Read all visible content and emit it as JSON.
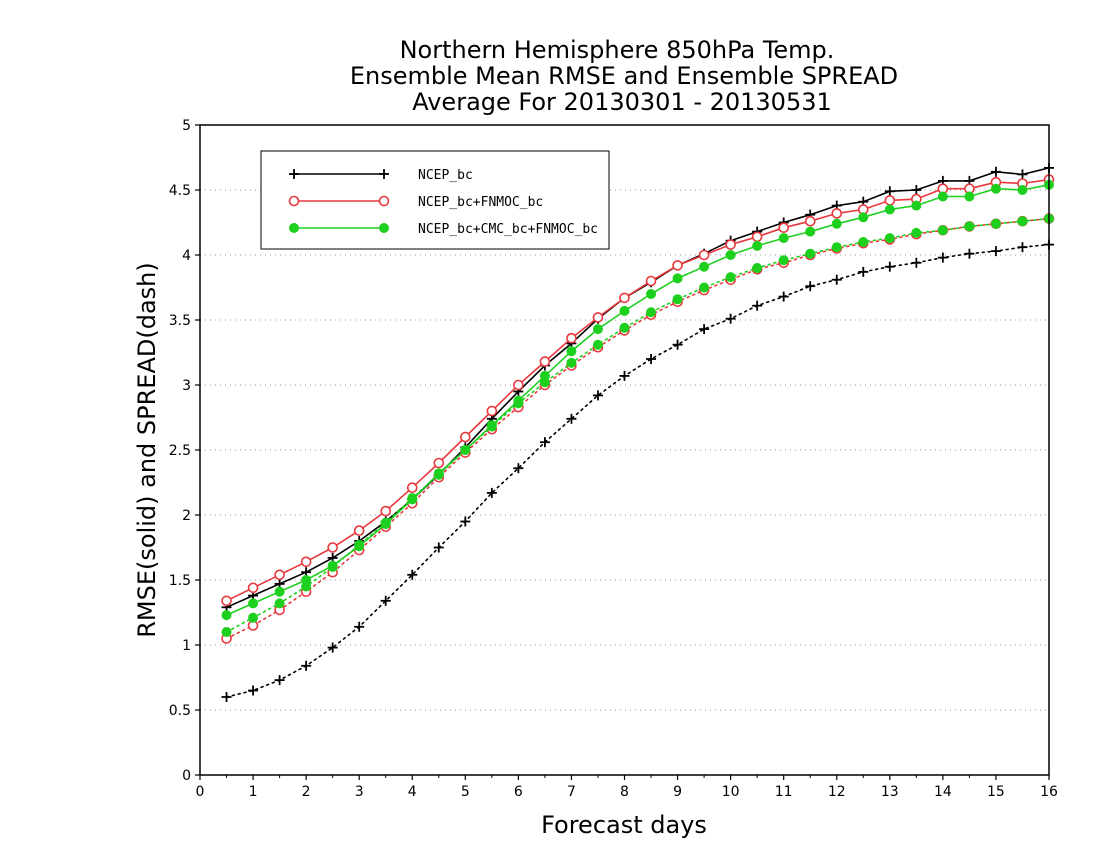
{
  "chart_data": {
    "type": "line",
    "title_lines": [
      "Northern Hemisphere 850hPa Temp.",
      "Ensemble Mean RMSE and Ensemble SPREAD",
      "Average For 20130301 - 20130531"
    ],
    "xlabel": "Forecast days",
    "ylabel": "RMSE(solid) and SPREAD(dash)",
    "xlim": [
      0,
      16
    ],
    "ylim": [
      0,
      5
    ],
    "xticks": [
      0,
      1,
      2,
      3,
      4,
      5,
      6,
      7,
      8,
      9,
      10,
      11,
      12,
      13,
      14,
      15,
      16
    ],
    "yticks": [
      0,
      0.5,
      1,
      1.5,
      2,
      2.5,
      3,
      3.5,
      4,
      4.5,
      5
    ],
    "grid": "horizontal dotted",
    "legend_position": "top-left",
    "x": [
      0.5,
      1,
      1.5,
      2,
      2.5,
      3,
      3.5,
      4,
      4.5,
      5,
      5.5,
      6,
      6.5,
      7,
      7.5,
      8,
      8.5,
      9,
      9.5,
      10,
      10.5,
      11,
      11.5,
      12,
      12.5,
      13,
      13.5,
      14,
      14.5,
      15,
      15.5,
      16
    ],
    "series": [
      {
        "name": "NCEP_bc",
        "color": "#000000",
        "marker": "plus",
        "rmse": [
          1.29,
          1.38,
          1.47,
          1.56,
          1.67,
          1.8,
          1.95,
          2.12,
          2.31,
          2.52,
          2.74,
          2.95,
          3.15,
          3.32,
          3.51,
          3.67,
          3.79,
          3.92,
          4.01,
          4.11,
          4.18,
          4.25,
          4.31,
          4.38,
          4.41,
          4.49,
          4.5,
          4.57,
          4.57,
          4.64,
          4.62,
          4.67
        ],
        "spread": [
          0.6,
          0.65,
          0.73,
          0.84,
          0.98,
          1.14,
          1.34,
          1.54,
          1.75,
          1.95,
          2.17,
          2.36,
          2.56,
          2.74,
          2.92,
          3.07,
          3.2,
          3.31,
          3.43,
          3.51,
          3.61,
          3.68,
          3.76,
          3.81,
          3.87,
          3.91,
          3.94,
          3.98,
          4.01,
          4.03,
          4.06,
          4.08
        ]
      },
      {
        "name": "NCEP_bc+FNMOC_bc",
        "color": "#e8383d",
        "marker": "open-circle",
        "rmse": [
          1.34,
          1.44,
          1.54,
          1.64,
          1.75,
          1.88,
          2.03,
          2.21,
          2.4,
          2.6,
          2.8,
          3.0,
          3.18,
          3.36,
          3.52,
          3.67,
          3.8,
          3.92,
          4.0,
          4.08,
          4.14,
          4.21,
          4.26,
          4.32,
          4.35,
          4.42,
          4.43,
          4.51,
          4.51,
          4.56,
          4.55,
          4.58
        ],
        "spread": [
          1.05,
          1.15,
          1.27,
          1.41,
          1.56,
          1.73,
          1.91,
          2.09,
          2.29,
          2.48,
          2.66,
          2.83,
          3.0,
          3.15,
          3.29,
          3.42,
          3.54,
          3.64,
          3.73,
          3.81,
          3.89,
          3.94,
          4.0,
          4.05,
          4.09,
          4.12,
          4.16,
          4.19,
          4.22,
          4.24,
          4.26,
          4.28
        ]
      },
      {
        "name": "NCEP_bc+CMC_bc+FNMOC_bc",
        "color": "#1ed01e",
        "marker": "filled-circle",
        "rmse": [
          1.23,
          1.32,
          1.41,
          1.5,
          1.61,
          1.76,
          1.93,
          2.12,
          2.32,
          2.5,
          2.69,
          2.88,
          3.07,
          3.26,
          3.43,
          3.57,
          3.7,
          3.82,
          3.91,
          4.0,
          4.07,
          4.13,
          4.18,
          4.24,
          4.29,
          4.35,
          4.38,
          4.45,
          4.45,
          4.51,
          4.5,
          4.54
        ],
        "spread": [
          1.1,
          1.21,
          1.32,
          1.45,
          1.6,
          1.77,
          1.94,
          2.13,
          2.31,
          2.5,
          2.68,
          2.86,
          3.02,
          3.17,
          3.31,
          3.44,
          3.56,
          3.66,
          3.75,
          3.83,
          3.9,
          3.96,
          4.01,
          4.06,
          4.1,
          4.13,
          4.17,
          4.19,
          4.22,
          4.24,
          4.26,
          4.28
        ]
      }
    ]
  }
}
